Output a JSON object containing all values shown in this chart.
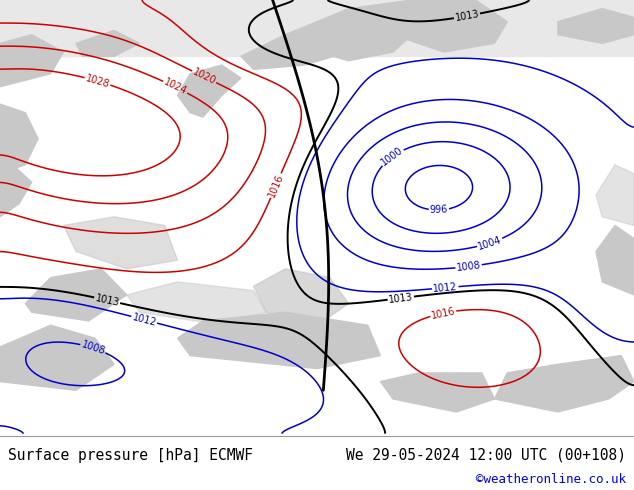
{
  "title_left": "Surface pressure [hPa] ECMWF",
  "title_right": "We 29-05-2024 12:00 UTC (00+108)",
  "copyright": "©weatheronline.co.uk",
  "bg_color_green": "#b8dc8c",
  "bg_color_gray": "#c8c8c8",
  "bg_color_white": "#e8e8e8",
  "bottom_bg": "#ffffff",
  "title_fontsize": 10.5,
  "copyright_color": "#0000ee",
  "text_color": "#000000",
  "red_color": "#cc0000",
  "blue_color": "#0000cc",
  "black_color": "#000000",
  "figsize": [
    6.34,
    4.9
  ],
  "dpi": 100
}
